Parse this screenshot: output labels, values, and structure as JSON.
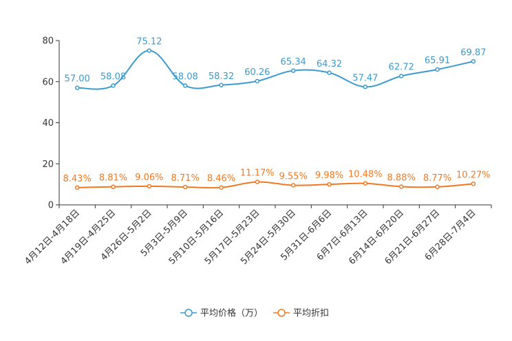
{
  "chart_data": {
    "type": "line",
    "title": "",
    "xlabel": "",
    "ylabel": "",
    "ylim": [
      0,
      80
    ],
    "yticks": [
      0,
      20,
      40,
      60,
      80
    ],
    "grid": false,
    "legend_position": "bottom-center",
    "categories": [
      "4月12日-4月18日",
      "4月19日-4月25日",
      "4月26日-5月2日",
      "5月3日-5月9日",
      "5月10日-5月16日",
      "5月17日-5月23日",
      "5月24日-5月30日",
      "5月31日-6月6日",
      "6月7日-6月13日",
      "6月14日-6月20日",
      "6月21日-6月27日",
      "6月28日-7月4日"
    ],
    "series": [
      {
        "name": "平均价格（万）",
        "color": "#3a9ad0",
        "values": [
          57.0,
          58.08,
          75.12,
          58.08,
          58.32,
          60.26,
          65.34,
          64.32,
          57.47,
          62.72,
          65.91,
          69.87
        ],
        "labels": [
          "57.00",
          "58.08",
          "75.12",
          "58.08",
          "58.32",
          "60.26",
          "65.34",
          "64.32",
          "57.47",
          "62.72",
          "65.91",
          "69.87"
        ]
      },
      {
        "name": "平均折扣",
        "color": "#f07820",
        "values": [
          8.43,
          8.81,
          9.06,
          8.71,
          8.46,
          11.17,
          9.55,
          9.98,
          10.48,
          8.88,
          8.77,
          10.27
        ],
        "labels": [
          "8.43%",
          "8.81%",
          "9.06%",
          "8.71%",
          "8.46%",
          "11.17%",
          "9.55%",
          "9.98%",
          "10.48%",
          "8.88%",
          "8.77%",
          "10.27%"
        ]
      }
    ]
  }
}
